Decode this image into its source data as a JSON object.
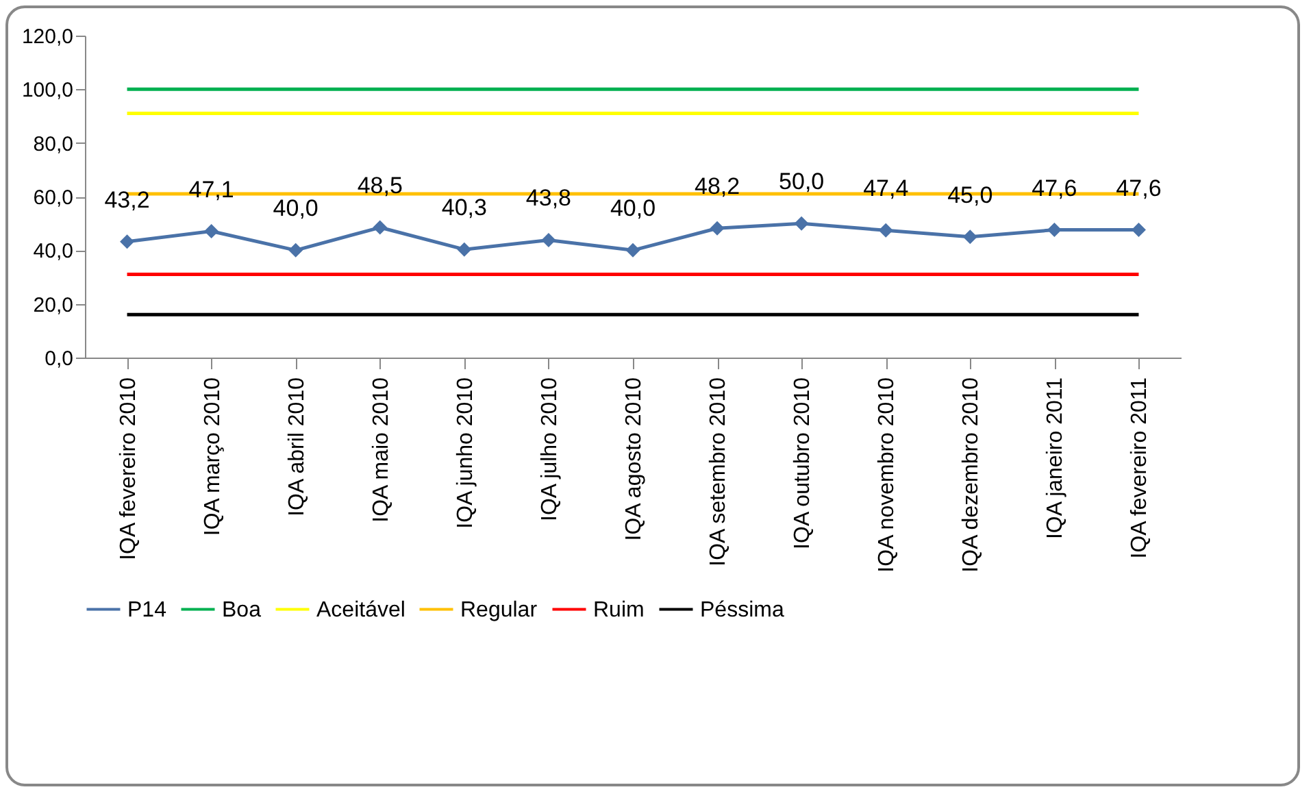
{
  "chart_data": {
    "type": "line",
    "categories": [
      "IQA fevereiro 2010",
      "IQA março 2010",
      "IQA abril 2010",
      "IQA maio 2010",
      "IQA junho 2010",
      "IQA julho 2010",
      "IQA agosto 2010",
      "IQA setembro 2010",
      "IQA outubro 2010",
      "IQA novembro 2010",
      "IQA dezembro 2010",
      "IQA janeiro 2011",
      "IQA fevereiro 2011"
    ],
    "series": [
      {
        "name": "P14",
        "color": "#4a72a8",
        "values": [
          43.2,
          47.1,
          40.0,
          48.5,
          40.3,
          43.8,
          40.0,
          48.2,
          50.0,
          47.4,
          45.0,
          47.6,
          47.6
        ],
        "value_labels": [
          "43,2",
          "47,1",
          "40,0",
          "48,5",
          "40,3",
          "43,8",
          "40,0",
          "48,2",
          "50,0",
          "47,4",
          "45,0",
          "47,6",
          "47,6"
        ]
      },
      {
        "name": "Boa",
        "color": "#00b050",
        "marker": "none",
        "values": [
          100,
          100,
          100,
          100,
          100,
          100,
          100,
          100,
          100,
          100,
          100,
          100,
          100
        ]
      },
      {
        "name": "Aceitável",
        "color": "#ffff00",
        "marker": "none",
        "values": [
          91,
          91,
          91,
          91,
          91,
          91,
          91,
          91,
          91,
          91,
          91,
          91,
          91
        ]
      },
      {
        "name": "Regular",
        "color": "#ffc000",
        "marker": "none",
        "values": [
          61,
          61,
          61,
          61,
          61,
          61,
          61,
          61,
          61,
          61,
          61,
          61,
          61
        ]
      },
      {
        "name": "Ruim",
        "color": "#ff0000",
        "marker": "none",
        "values": [
          31,
          31,
          31,
          31,
          31,
          31,
          31,
          31,
          31,
          31,
          31,
          31,
          31
        ]
      },
      {
        "name": "Péssima",
        "color": "#000000",
        "marker": "none",
        "values": [
          16,
          16,
          16,
          16,
          16,
          16,
          16,
          16,
          16,
          16,
          16,
          16,
          16
        ]
      }
    ],
    "ylim": [
      0,
      120
    ],
    "yticks": [
      {
        "value": 0,
        "label": "0,0"
      },
      {
        "value": 20,
        "label": "20,0"
      },
      {
        "value": 40,
        "label": "40,0"
      },
      {
        "value": 60,
        "label": "60,0"
      },
      {
        "value": 80,
        "label": "80,0"
      },
      {
        "value": 100,
        "label": "100,0"
      },
      {
        "value": 120,
        "label": "120,0"
      }
    ],
    "grid": false,
    "legend": "bottom",
    "marker": "diamond",
    "line_style": "solid"
  }
}
